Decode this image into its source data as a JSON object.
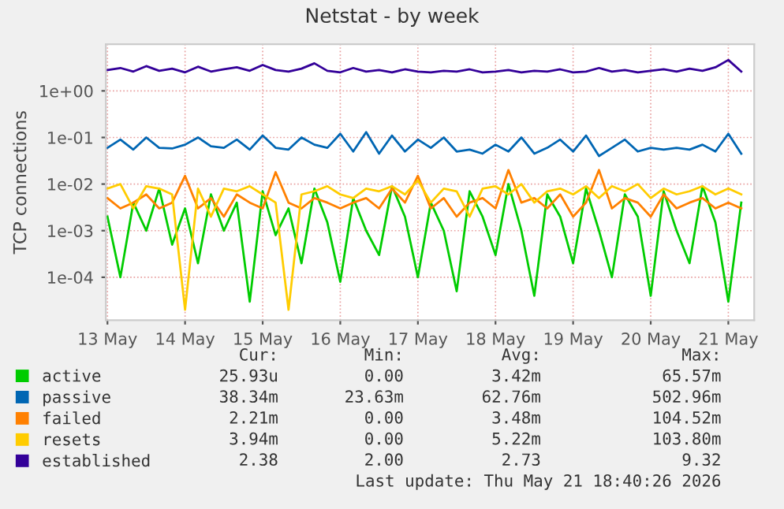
{
  "chart_data": {
    "type": "line",
    "title": "Netstat - by week",
    "ylabel": "TCP connections",
    "log": "y",
    "grid": true,
    "legend": "bottom",
    "x": [
      "2026-05-13T12:00",
      "2026-05-13T16:00",
      "2026-05-13T20:00",
      "2026-05-14T00:00",
      "2026-05-14T04:00",
      "2026-05-14T08:00",
      "2026-05-14T12:00",
      "2026-05-14T16:00",
      "2026-05-14T20:00",
      "2026-05-15T00:00",
      "2026-05-15T04:00",
      "2026-05-15T08:00",
      "2026-05-15T12:00",
      "2026-05-15T16:00",
      "2026-05-15T20:00",
      "2026-05-16T00:00",
      "2026-05-16T04:00",
      "2026-05-16T08:00",
      "2026-05-16T12:00",
      "2026-05-16T16:00",
      "2026-05-16T20:00",
      "2026-05-17T00:00",
      "2026-05-17T04:00",
      "2026-05-17T08:00",
      "2026-05-17T12:00",
      "2026-05-17T16:00",
      "2026-05-17T20:00",
      "2026-05-18T00:00",
      "2026-05-18T04:00",
      "2026-05-18T08:00",
      "2026-05-18T12:00",
      "2026-05-18T16:00",
      "2026-05-18T20:00",
      "2026-05-19T00:00",
      "2026-05-19T04:00",
      "2026-05-19T08:00",
      "2026-05-19T12:00",
      "2026-05-19T16:00",
      "2026-05-19T20:00",
      "2026-05-20T00:00",
      "2026-05-20T04:00",
      "2026-05-20T08:00",
      "2026-05-20T12:00",
      "2026-05-20T16:00",
      "2026-05-20T20:00",
      "2026-05-21T00:00",
      "2026-05-21T04:00",
      "2026-05-21T08:00",
      "2026-05-21T12:00",
      "2026-05-21T16:00"
    ],
    "xlim": [
      "2026-05-13T11:30",
      "2026-05-21T20:00"
    ],
    "xticks": [
      {
        "value": "2026-05-13T12:00",
        "label": "13 May"
      },
      {
        "value": "2026-05-14T12:00",
        "label": "14 May"
      },
      {
        "value": "2026-05-15T12:00",
        "label": "15 May"
      },
      {
        "value": "2026-05-16T12:00",
        "label": "16 May"
      },
      {
        "value": "2026-05-17T12:00",
        "label": "17 May"
      },
      {
        "value": "2026-05-18T12:00",
        "label": "18 May"
      },
      {
        "value": "2026-05-19T12:00",
        "label": "19 May"
      },
      {
        "value": "2026-05-20T12:00",
        "label": "20 May"
      },
      {
        "value": "2026-05-21T12:00",
        "label": "21 May"
      }
    ],
    "ylim": [
      1.2e-05,
      10
    ],
    "yticks": [
      {
        "value": 0.0001,
        "label": "1e-04"
      },
      {
        "value": 0.001,
        "label": "1e-03"
      },
      {
        "value": 0.01,
        "label": "1e-02"
      },
      {
        "value": 0.1,
        "label": "1e-01"
      },
      {
        "value": 1,
        "label": "1e+00"
      }
    ],
    "series": [
      {
        "name": "active",
        "color": "#00cc00",
        "values": [
          0.002,
          0.0001,
          0.004,
          0.001,
          0.008,
          0.0005,
          0.003,
          0.0002,
          0.006,
          0.001,
          0.004,
          3e-05,
          0.007,
          0.0008,
          0.003,
          0.0002,
          0.008,
          0.0015,
          8e-05,
          0.005,
          0.001,
          0.0003,
          0.009,
          0.002,
          0.0001,
          0.004,
          0.001,
          5e-05,
          0.007,
          0.002,
          0.0003,
          0.01,
          0.001,
          4e-05,
          0.006,
          0.002,
          0.0002,
          0.008,
          0.001,
          0.0001,
          0.006,
          0.002,
          4e-05,
          0.007,
          0.001,
          0.0002,
          0.009,
          0.0015,
          3e-05,
          0.004
        ]
      },
      {
        "name": "passive",
        "color": "#0066b3",
        "values": [
          0.06,
          0.09,
          0.055,
          0.1,
          0.06,
          0.058,
          0.07,
          0.1,
          0.065,
          0.06,
          0.09,
          0.055,
          0.11,
          0.06,
          0.055,
          0.1,
          0.07,
          0.06,
          0.12,
          0.05,
          0.13,
          0.045,
          0.11,
          0.05,
          0.09,
          0.06,
          0.1,
          0.05,
          0.055,
          0.045,
          0.07,
          0.05,
          0.1,
          0.045,
          0.06,
          0.09,
          0.05,
          0.11,
          0.04,
          0.06,
          0.09,
          0.05,
          0.06,
          0.055,
          0.06,
          0.055,
          0.07,
          0.05,
          0.12,
          0.045
        ]
      },
      {
        "name": "failed",
        "color": "#ff8000",
        "values": [
          0.005,
          0.003,
          0.004,
          0.006,
          0.003,
          0.004,
          0.015,
          0.003,
          0.005,
          0.002,
          0.006,
          0.004,
          0.003,
          0.018,
          0.004,
          0.003,
          0.005,
          0.004,
          0.003,
          0.004,
          0.005,
          0.003,
          0.008,
          0.004,
          0.015,
          0.003,
          0.005,
          0.002,
          0.004,
          0.005,
          0.003,
          0.02,
          0.004,
          0.005,
          0.003,
          0.006,
          0.002,
          0.004,
          0.02,
          0.003,
          0.005,
          0.004,
          0.002,
          0.006,
          0.003,
          0.004,
          0.005,
          0.003,
          0.004,
          0.003
        ]
      },
      {
        "name": "resets",
        "color": "#ffcc00",
        "values": [
          0.008,
          0.01,
          0.003,
          0.009,
          0.008,
          0.006,
          2e-05,
          0.008,
          0.002,
          0.008,
          0.007,
          0.009,
          0.006,
          0.004,
          2e-05,
          0.006,
          0.007,
          0.009,
          0.006,
          0.005,
          0.008,
          0.007,
          0.009,
          0.006,
          0.012,
          0.004,
          0.008,
          0.007,
          0.002,
          0.008,
          0.009,
          0.006,
          0.01,
          0.004,
          0.007,
          0.008,
          0.006,
          0.009,
          0.005,
          0.009,
          0.007,
          0.01,
          0.005,
          0.008,
          0.006,
          0.007,
          0.009,
          0.006,
          0.008,
          0.006
        ]
      },
      {
        "name": "established",
        "color": "#330099",
        "values": [
          2.8,
          3.1,
          2.6,
          3.4,
          2.7,
          3.0,
          2.5,
          3.3,
          2.6,
          2.9,
          3.2,
          2.7,
          3.6,
          2.8,
          2.6,
          3.0,
          3.9,
          2.7,
          2.5,
          3.1,
          2.6,
          2.8,
          2.5,
          2.9,
          2.6,
          2.5,
          2.7,
          2.6,
          2.9,
          2.5,
          2.6,
          2.8,
          2.5,
          2.7,
          2.6,
          2.9,
          2.5,
          2.6,
          3.1,
          2.6,
          2.8,
          2.5,
          2.7,
          2.9,
          2.6,
          3.0,
          2.7,
          3.2,
          4.6,
          2.6
        ]
      }
    ],
    "annotations": [
      "Cur:",
      "Min:",
      "Avg:",
      "Max:",
      "25.93u",
      "0.00",
      "3.42m",
      "65.57m",
      "38.34m",
      "23.63m",
      "62.76m",
      "502.96m",
      "2.21m",
      "0.00",
      "3.48m",
      "104.52m",
      "3.94m",
      "0.00",
      "5.22m",
      "103.80m",
      "2.38",
      "2.00",
      "2.73",
      "9.32",
      "Last update: Thu May 21 18:40:26 2026"
    ]
  }
}
